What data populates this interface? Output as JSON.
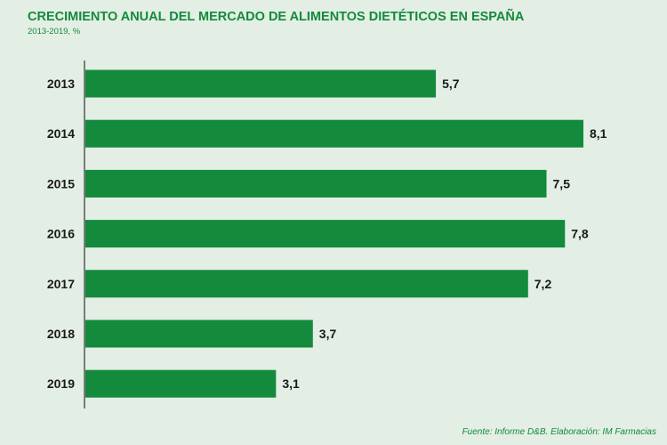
{
  "title": "CRECIMIENTO ANUAL DEL MERCADO DE ALIMENTOS DIETÉTICOS EN ESPAÑA",
  "subtitle": "2013-2019, %",
  "source": "Fuente: Informe D&B. Elaboración: IM Farmacias",
  "colors": {
    "background": "#e3eee4",
    "bar": "#138a3c",
    "accent_text": "#138a3c",
    "label_text": "#1a1a1a",
    "axis": "#333333"
  },
  "chart_data": {
    "type": "bar",
    "orientation": "horizontal",
    "title": "CRECIMIENTO ANUAL DEL MERCADO DE ALIMENTOS DIETÉTICOS EN ESPAÑA",
    "subtitle": "2013-2019, %",
    "categories": [
      "2013",
      "2014",
      "2015",
      "2016",
      "2017",
      "2018",
      "2019"
    ],
    "values": [
      5.7,
      8.1,
      7.5,
      7.8,
      7.2,
      3.7,
      3.1
    ],
    "value_labels": [
      "5,7",
      "8,1",
      "7,5",
      "7,8",
      "7,2",
      "3,7",
      "3,1"
    ],
    "xlabel": "",
    "ylabel": "",
    "xlim": [
      0,
      8.1
    ],
    "grid": false,
    "legend": "none"
  }
}
